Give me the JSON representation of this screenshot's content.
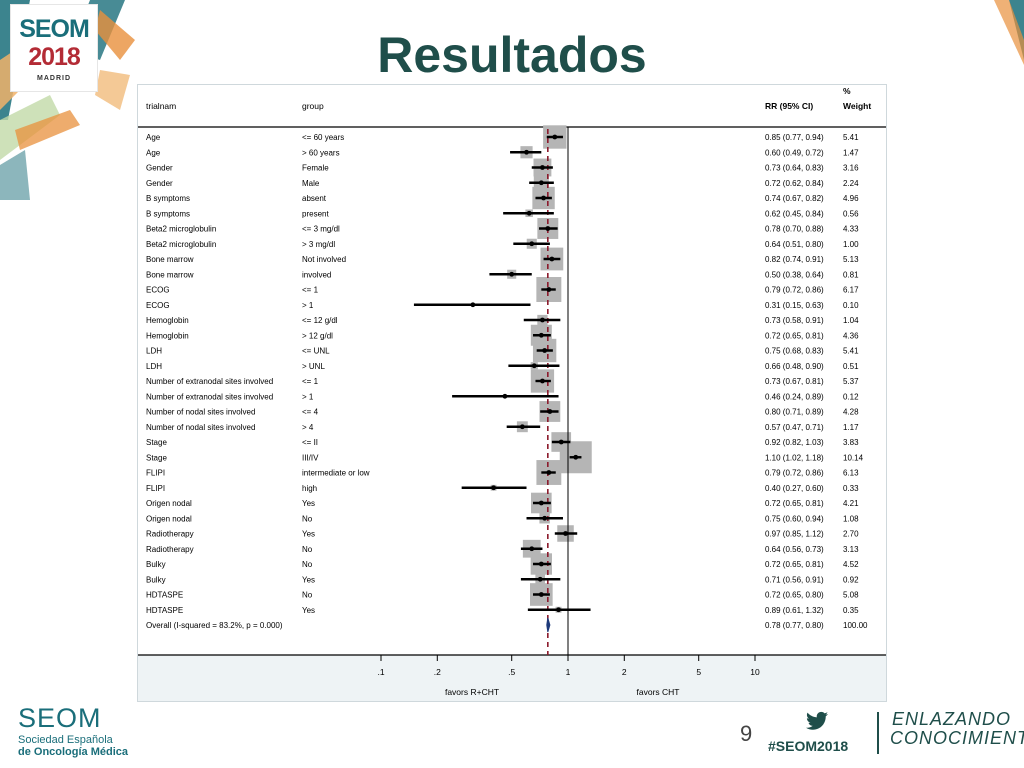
{
  "header": {
    "title": "Resultados",
    "logo_name": "SEOM",
    "logo_year": "2018",
    "logo_city": "MADRID"
  },
  "footer": {
    "org_name": "SEOM",
    "org_line1": "Sociedad Española",
    "org_line2": "de Oncología Médica",
    "page_number": "9",
    "hashtag": "#SEOM2018",
    "slogan_line1": "ENLAZANDO",
    "slogan_line2": "CONOCIMIENTO",
    "icon": "twitter-bird-icon"
  },
  "colors": {
    "title": "#1f4e4a",
    "brand_teal": "#1a6e7a",
    "brand_red": "#b32b35",
    "deco_orange": "#e8903c",
    "box_gray": "#b5b5b5",
    "overall_line": "#8b1a2b"
  },
  "chart_data": {
    "type": "forest",
    "columns": {
      "trialnam": "trialnam",
      "group": "group",
      "rr": "RR (95% CI)",
      "weight_top": "%",
      "weight_bottom": "Weight"
    },
    "x_scale": "log",
    "xlim": [
      0.1,
      10
    ],
    "x_ticks": [
      ".1",
      ".2",
      ".5",
      "1",
      "2",
      "5",
      "10"
    ],
    "x_tick_values": [
      0.1,
      0.2,
      0.5,
      1,
      2,
      5,
      10
    ],
    "xlabel_left": "favors R+CHT",
    "xlabel_right": "favors CHT",
    "rows": [
      {
        "trialnam": "Age",
        "group": "<= 60 years",
        "rr": 0.85,
        "lo": 0.77,
        "hi": 0.94,
        "rr_text": "0.85 (0.77, 0.94)",
        "weight": 5.41,
        "weight_text": "5.41"
      },
      {
        "trialnam": "Age",
        "group": "> 60 years",
        "rr": 0.6,
        "lo": 0.49,
        "hi": 0.72,
        "rr_text": "0.60 (0.49, 0.72)",
        "weight": 1.47,
        "weight_text": "1.47"
      },
      {
        "trialnam": "Gender",
        "group": "Female",
        "rr": 0.73,
        "lo": 0.64,
        "hi": 0.83,
        "rr_text": "0.73 (0.64, 0.83)",
        "weight": 3.16,
        "weight_text": "3.16"
      },
      {
        "trialnam": "Gender",
        "group": "Male",
        "rr": 0.72,
        "lo": 0.62,
        "hi": 0.84,
        "rr_text": "0.72 (0.62, 0.84)",
        "weight": 2.24,
        "weight_text": "2.24"
      },
      {
        "trialnam": "B symptoms",
        "group": "absent",
        "rr": 0.74,
        "lo": 0.67,
        "hi": 0.82,
        "rr_text": "0.74 (0.67, 0.82)",
        "weight": 4.96,
        "weight_text": "4.96"
      },
      {
        "trialnam": "B symptoms",
        "group": "present",
        "rr": 0.62,
        "lo": 0.45,
        "hi": 0.84,
        "rr_text": "0.62 (0.45, 0.84)",
        "weight": 0.56,
        "weight_text": "0.56"
      },
      {
        "trialnam": "Beta2 microglobulin",
        "group": "<= 3 mg/dl",
        "rr": 0.78,
        "lo": 0.7,
        "hi": 0.88,
        "rr_text": "0.78 (0.70, 0.88)",
        "weight": 4.33,
        "weight_text": "4.33"
      },
      {
        "trialnam": "Beta2 microglobulin",
        "group": "> 3 mg/dl",
        "rr": 0.64,
        "lo": 0.51,
        "hi": 0.8,
        "rr_text": "0.64 (0.51, 0.80)",
        "weight": 1.0,
        "weight_text": "1.00"
      },
      {
        "trialnam": "Bone marrow",
        "group": "Not involved",
        "rr": 0.82,
        "lo": 0.74,
        "hi": 0.91,
        "rr_text": "0.82 (0.74, 0.91)",
        "weight": 5.13,
        "weight_text": "5.13"
      },
      {
        "trialnam": "Bone marrow",
        "group": "involved",
        "rr": 0.5,
        "lo": 0.38,
        "hi": 0.64,
        "rr_text": "0.50 (0.38, 0.64)",
        "weight": 0.81,
        "weight_text": "0.81"
      },
      {
        "trialnam": "ECOG",
        "group": "<= 1",
        "rr": 0.79,
        "lo": 0.72,
        "hi": 0.86,
        "rr_text": "0.79 (0.72, 0.86)",
        "weight": 6.17,
        "weight_text": "6.17"
      },
      {
        "trialnam": "ECOG",
        "group": "> 1",
        "rr": 0.31,
        "lo": 0.15,
        "hi": 0.63,
        "rr_text": "0.31 (0.15, 0.63)",
        "weight": 0.1,
        "weight_text": "0.10"
      },
      {
        "trialnam": "Hemoglobin",
        "group": "<= 12 g/dl",
        "rr": 0.73,
        "lo": 0.58,
        "hi": 0.91,
        "rr_text": "0.73 (0.58, 0.91)",
        "weight": 1.04,
        "weight_text": "1.04"
      },
      {
        "trialnam": "Hemoglobin",
        "group": "> 12 g/dl",
        "rr": 0.72,
        "lo": 0.65,
        "hi": 0.81,
        "rr_text": "0.72 (0.65, 0.81)",
        "weight": 4.36,
        "weight_text": "4.36"
      },
      {
        "trialnam": "LDH",
        "group": "<= UNL",
        "rr": 0.75,
        "lo": 0.68,
        "hi": 0.83,
        "rr_text": "0.75 (0.68, 0.83)",
        "weight": 5.41,
        "weight_text": "5.41"
      },
      {
        "trialnam": "LDH",
        "group": "> UNL",
        "rr": 0.66,
        "lo": 0.48,
        "hi": 0.9,
        "rr_text": "0.66 (0.48, 0.90)",
        "weight": 0.51,
        "weight_text": "0.51"
      },
      {
        "trialnam": "Number of extranodal sites involved",
        "group": "<= 1",
        "rr": 0.73,
        "lo": 0.67,
        "hi": 0.81,
        "rr_text": "0.73 (0.67, 0.81)",
        "weight": 5.37,
        "weight_text": "5.37"
      },
      {
        "trialnam": "Number of extranodal sites involved",
        "group": "> 1",
        "rr": 0.46,
        "lo": 0.24,
        "hi": 0.89,
        "rr_text": "0.46 (0.24, 0.89)",
        "weight": 0.12,
        "weight_text": "0.12"
      },
      {
        "trialnam": "Number of nodal sites involved",
        "group": "<= 4",
        "rr": 0.8,
        "lo": 0.71,
        "hi": 0.89,
        "rr_text": "0.80 (0.71, 0.89)",
        "weight": 4.28,
        "weight_text": "4.28"
      },
      {
        "trialnam": "Number of nodal sites involved",
        "group": "> 4",
        "rr": 0.57,
        "lo": 0.47,
        "hi": 0.71,
        "rr_text": "0.57 (0.47, 0.71)",
        "weight": 1.17,
        "weight_text": "1.17"
      },
      {
        "trialnam": "Stage",
        "group": "<= II",
        "rr": 0.92,
        "lo": 0.82,
        "hi": 1.03,
        "rr_text": "0.92 (0.82, 1.03)",
        "weight": 3.83,
        "weight_text": "3.83"
      },
      {
        "trialnam": "Stage",
        "group": "III/IV",
        "rr": 1.1,
        "lo": 1.02,
        "hi": 1.18,
        "rr_text": "1.10 (1.02, 1.18)",
        "weight": 10.14,
        "weight_text": "10.14"
      },
      {
        "trialnam": "FLIPI",
        "group": "intermediate or low",
        "rr": 0.79,
        "lo": 0.72,
        "hi": 0.86,
        "rr_text": "0.79 (0.72, 0.86)",
        "weight": 6.13,
        "weight_text": "6.13"
      },
      {
        "trialnam": "FLIPI",
        "group": "high",
        "rr": 0.4,
        "lo": 0.27,
        "hi": 0.6,
        "rr_text": "0.40 (0.27, 0.60)",
        "weight": 0.33,
        "weight_text": "0.33"
      },
      {
        "trialnam": "Origen nodal",
        "group": "Yes",
        "rr": 0.72,
        "lo": 0.65,
        "hi": 0.81,
        "rr_text": "0.72 (0.65, 0.81)",
        "weight": 4.21,
        "weight_text": "4.21"
      },
      {
        "trialnam": "Origen nodal",
        "group": "No",
        "rr": 0.75,
        "lo": 0.6,
        "hi": 0.94,
        "rr_text": "0.75 (0.60, 0.94)",
        "weight": 1.08,
        "weight_text": "1.08"
      },
      {
        "trialnam": "Radiotherapy",
        "group": "Yes",
        "rr": 0.97,
        "lo": 0.85,
        "hi": 1.12,
        "rr_text": "0.97 (0.85, 1.12)",
        "weight": 2.7,
        "weight_text": "2.70"
      },
      {
        "trialnam": "Radiotherapy",
        "group": "No",
        "rr": 0.64,
        "lo": 0.56,
        "hi": 0.73,
        "rr_text": "0.64 (0.56, 0.73)",
        "weight": 3.13,
        "weight_text": "3.13"
      },
      {
        "trialnam": "Bulky",
        "group": "No",
        "rr": 0.72,
        "lo": 0.65,
        "hi": 0.81,
        "rr_text": "0.72 (0.65, 0.81)",
        "weight": 4.52,
        "weight_text": "4.52"
      },
      {
        "trialnam": "Bulky",
        "group": "Yes",
        "rr": 0.71,
        "lo": 0.56,
        "hi": 0.91,
        "rr_text": "0.71 (0.56, 0.91)",
        "weight": 0.92,
        "weight_text": "0.92"
      },
      {
        "trialnam": "HDTASPE",
        "group": "No",
        "rr": 0.72,
        "lo": 0.65,
        "hi": 0.8,
        "rr_text": "0.72 (0.65, 0.80)",
        "weight": 5.08,
        "weight_text": "5.08"
      },
      {
        "trialnam": "HDTASPE",
        "group": "Yes",
        "rr": 0.89,
        "lo": 0.61,
        "hi": 1.32,
        "rr_text": "0.89 (0.61, 1.32)",
        "weight": 0.35,
        "weight_text": "0.35"
      }
    ],
    "overall": {
      "label": "Overall  (I-squared = 83.2%, p = 0.000)",
      "rr": 0.78,
      "lo": 0.77,
      "hi": 0.8,
      "rr_text": "0.78 (0.77, 0.80)",
      "weight_text": "100.00"
    },
    "grid": false,
    "legend": "none"
  }
}
